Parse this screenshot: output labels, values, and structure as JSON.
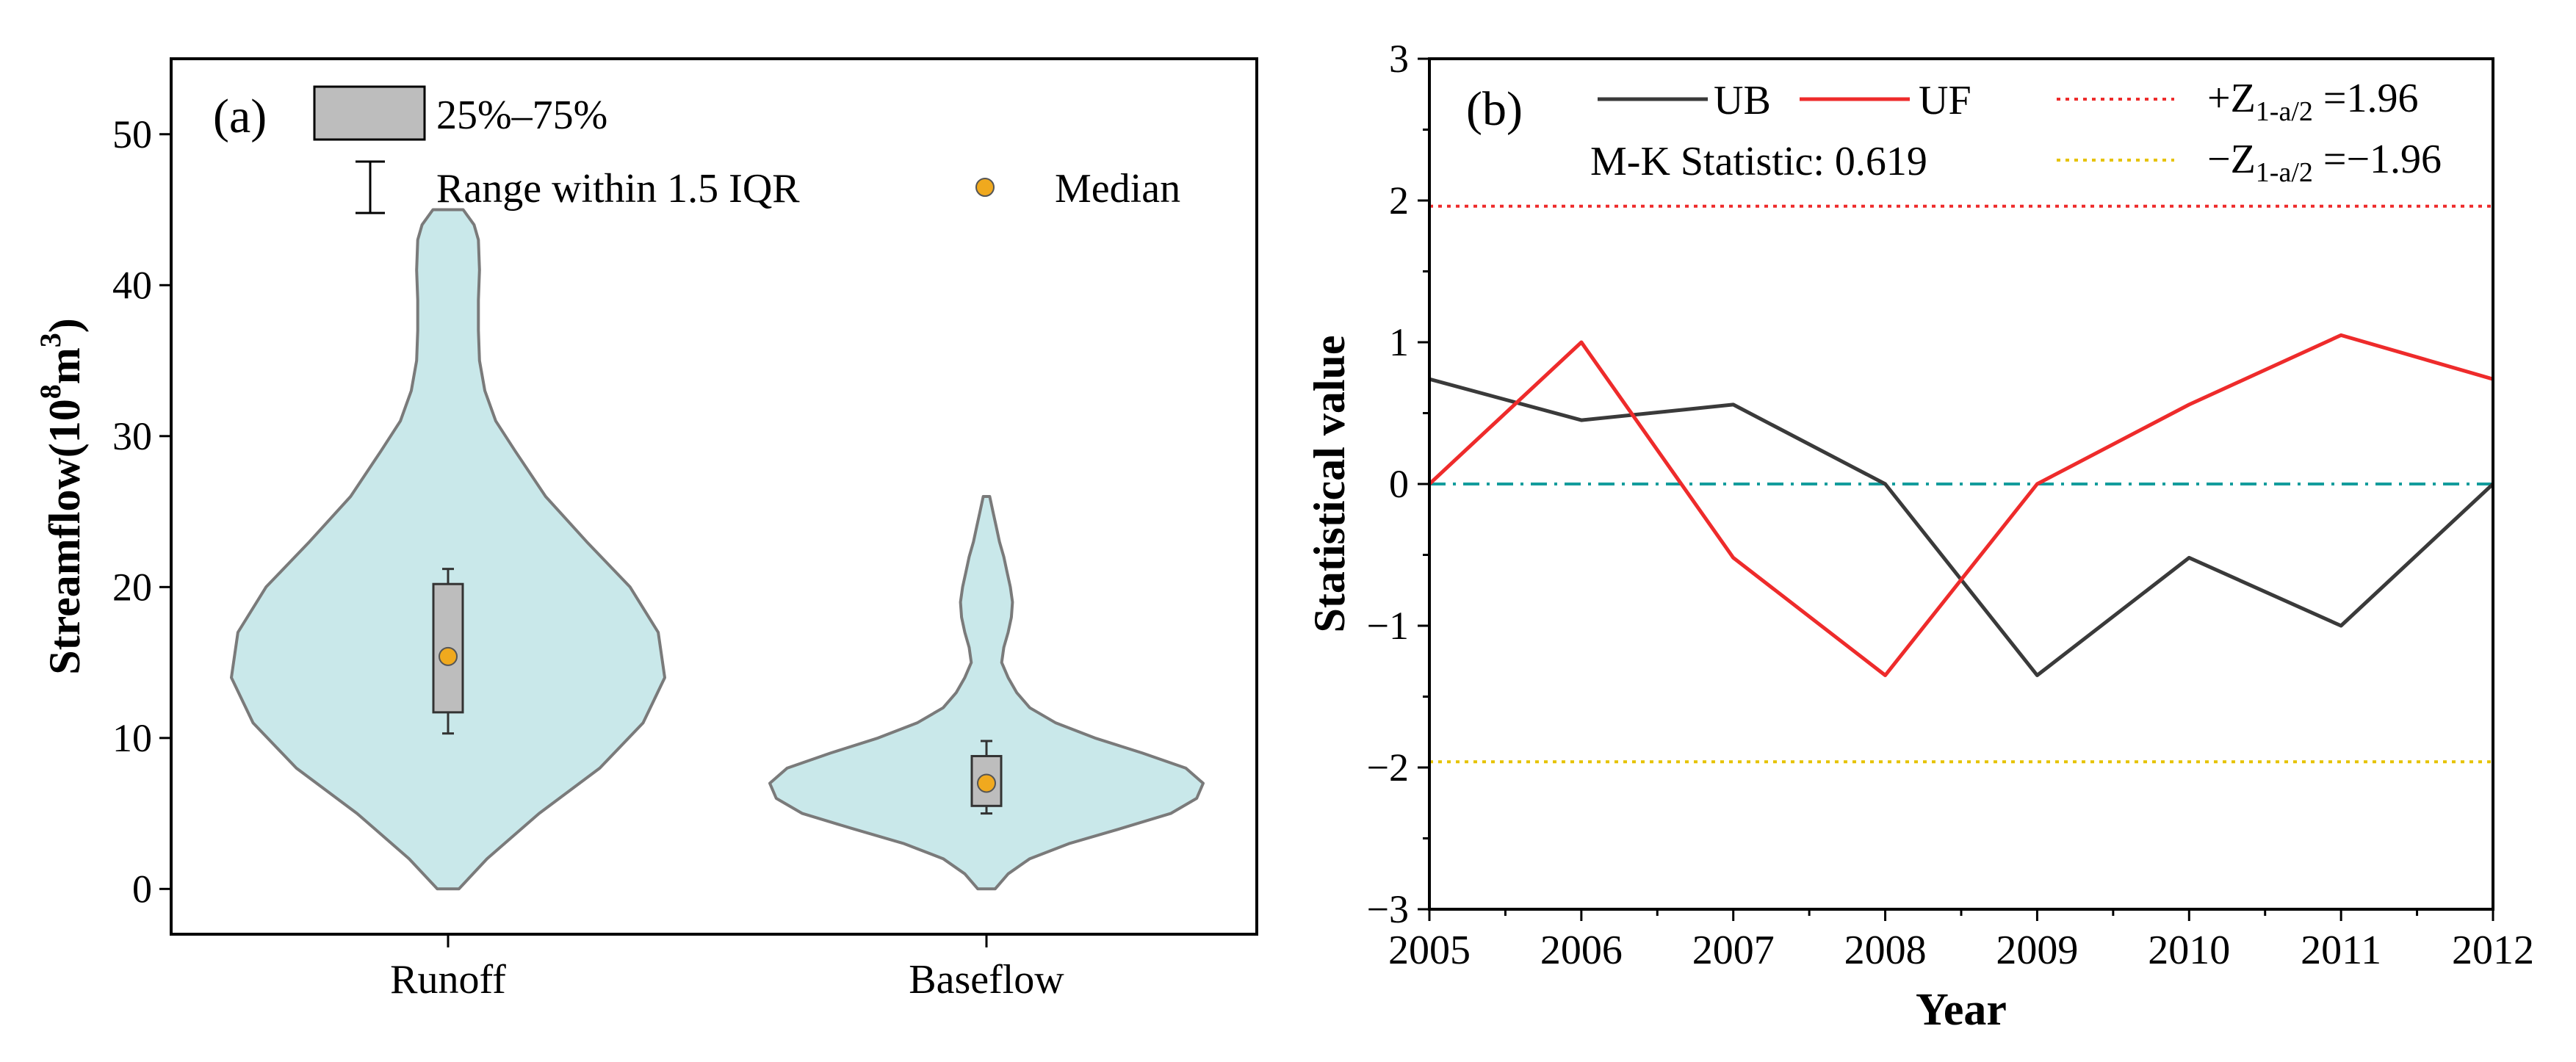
{
  "colors": {
    "violin_fill": "#c9e8ea",
    "violin_stroke": "#7a7a7a",
    "box_fill": "#bdbdbd",
    "median_fill": "#f0a91e",
    "ub_color": "#3a3a3a",
    "uf_color": "#ee2b2b",
    "pos_crit_color": "#ee2b2b",
    "neg_crit_color": "#e6c300",
    "zero_line_color": "#139c9c"
  },
  "chart_data": [
    {
      "type": "violin",
      "panel_label": "(a)",
      "ylabel_main": "Streamflow(10",
      "ylabel_sup1": "8",
      "ylabel_mid": "m",
      "ylabel_sup2": "3",
      "ylabel_end": ")",
      "ylim": [
        -3,
        55
      ],
      "yticks": [
        0,
        10,
        20,
        30,
        40,
        50
      ],
      "ytick_labels": [
        "0",
        "10",
        "20",
        "30",
        "40",
        "50"
      ],
      "legend": {
        "box_label": "25%–75%",
        "whisker_label": "Range within 1.5 IQR",
        "median_label": "Median"
      },
      "categories": [
        "Runoff",
        "Baseflow"
      ],
      "groups": [
        {
          "name": "Runoff",
          "q1": 11.7,
          "q3": 20.2,
          "median": 15.4,
          "whisker_low": 10.3,
          "whisker_high": 21.2,
          "min": 0,
          "max": 45,
          "density": [
            [
              0,
              0.05
            ],
            [
              2,
              0.18
            ],
            [
              5,
              0.42
            ],
            [
              8,
              0.7
            ],
            [
              11,
              0.9
            ],
            [
              14,
              1.0
            ],
            [
              17,
              0.97
            ],
            [
              20,
              0.84
            ],
            [
              23,
              0.64
            ],
            [
              26,
              0.45
            ],
            [
              29,
              0.31
            ],
            [
              31,
              0.22
            ],
            [
              33,
              0.17
            ],
            [
              35,
              0.145
            ],
            [
              37,
              0.14
            ],
            [
              39,
              0.14
            ],
            [
              41,
              0.145
            ],
            [
              43,
              0.14
            ],
            [
              44,
              0.12
            ],
            [
              45,
              0.07
            ]
          ]
        },
        {
          "name": "Baseflow",
          "q1": 5.5,
          "q3": 8.8,
          "median": 7.0,
          "whisker_low": 5.0,
          "whisker_high": 9.8,
          "min": 0,
          "max": 26,
          "density": [
            [
              0,
              0.04
            ],
            [
              1,
              0.1
            ],
            [
              2,
              0.2
            ],
            [
              3,
              0.38
            ],
            [
              4,
              0.62
            ],
            [
              5,
              0.85
            ],
            [
              6,
              0.97
            ],
            [
              7,
              1.0
            ],
            [
              8,
              0.92
            ],
            [
              9,
              0.72
            ],
            [
              10,
              0.5
            ],
            [
              11,
              0.32
            ],
            [
              12,
              0.2
            ],
            [
              13,
              0.14
            ],
            [
              14,
              0.1
            ],
            [
              15,
              0.07
            ],
            [
              16,
              0.08
            ],
            [
              17,
              0.1
            ],
            [
              18,
              0.115
            ],
            [
              19,
              0.12
            ],
            [
              20,
              0.11
            ],
            [
              21,
              0.095
            ],
            [
              22,
              0.08
            ],
            [
              23,
              0.06
            ],
            [
              24,
              0.045
            ],
            [
              25,
              0.03
            ],
            [
              26,
              0.015
            ]
          ]
        }
      ]
    },
    {
      "type": "line",
      "panel_label": "(b)",
      "title": "",
      "xlabel": "Year",
      "ylabel": "Statistical value",
      "x": [
        2005,
        2006,
        2007,
        2008,
        2009,
        2010,
        2011,
        2012
      ],
      "xtick_labels": [
        "2005",
        "2006",
        "2007",
        "2008",
        "2009",
        "2010",
        "2011",
        "2012"
      ],
      "xlim": [
        2005,
        2012
      ],
      "ylim": [
        -3,
        3
      ],
      "yticks": [
        -3,
        -2,
        -1,
        0,
        1,
        2,
        3
      ],
      "ytick_labels": [
        "−3",
        "−2",
        "−1",
        "0",
        "1",
        "2",
        "3"
      ],
      "series": [
        {
          "name": "UB",
          "values": [
            0.74,
            0.45,
            0.56,
            0.0,
            -1.35,
            -0.52,
            -1.0,
            0.0
          ]
        },
        {
          "name": "UF",
          "values": [
            0.0,
            1.0,
            -0.52,
            -1.35,
            0.0,
            0.56,
            1.05,
            0.74
          ]
        }
      ],
      "reference_lines": [
        {
          "name": "+Z",
          "value": 1.96
        },
        {
          "name": "−Z",
          "value": -1.96
        },
        {
          "name": "zero",
          "value": 0
        }
      ],
      "legend": {
        "ub_label": "UB",
        "uf_label": "UF",
        "pos_main": "+Z",
        "pos_sub": "1-a/2",
        "pos_value": " =1.96",
        "neg_main": "−Z",
        "neg_sub": "1-a/2",
        "neg_value": " =−1.96"
      },
      "annotation": "M-K Statistic: 0.619"
    }
  ]
}
